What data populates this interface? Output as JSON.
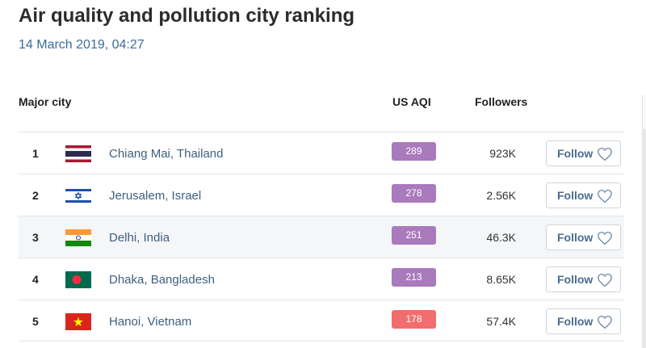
{
  "page": {
    "title": "Air quality and pollution city ranking",
    "timestamp": "14 March 2019, 04:27"
  },
  "table": {
    "headers": {
      "city": "Major city",
      "aqi": "US AQI",
      "followers": "Followers"
    },
    "rows": [
      {
        "rank": "1",
        "city": "Chiang Mai, Thailand",
        "aqi": "289",
        "aqi_color": "#a97abc",
        "followers": "923K",
        "follow_label": "Follow",
        "flag": "thailand-flag-icon"
      },
      {
        "rank": "2",
        "city": "Jerusalem, Israel",
        "aqi": "278",
        "aqi_color": "#a97abc",
        "followers": "2.56K",
        "follow_label": "Follow",
        "flag": "israel-flag-icon"
      },
      {
        "rank": "3",
        "city": "Delhi, India",
        "aqi": "251",
        "aqi_color": "#a97abc",
        "followers": "46.3K",
        "follow_label": "Follow",
        "flag": "india-flag-icon"
      },
      {
        "rank": "4",
        "city": "Dhaka, Bangladesh",
        "aqi": "213",
        "aqi_color": "#a97abc",
        "followers": "8.65K",
        "follow_label": "Follow",
        "flag": "bangladesh-flag-icon"
      },
      {
        "rank": "5",
        "city": "Hanoi, Vietnam",
        "aqi": "178",
        "aqi_color": "#f26d6d",
        "followers": "57.4K",
        "follow_label": "Follow",
        "flag": "vietnam-flag-icon"
      }
    ]
  },
  "icons": {
    "follow": "heart-outline-icon"
  }
}
